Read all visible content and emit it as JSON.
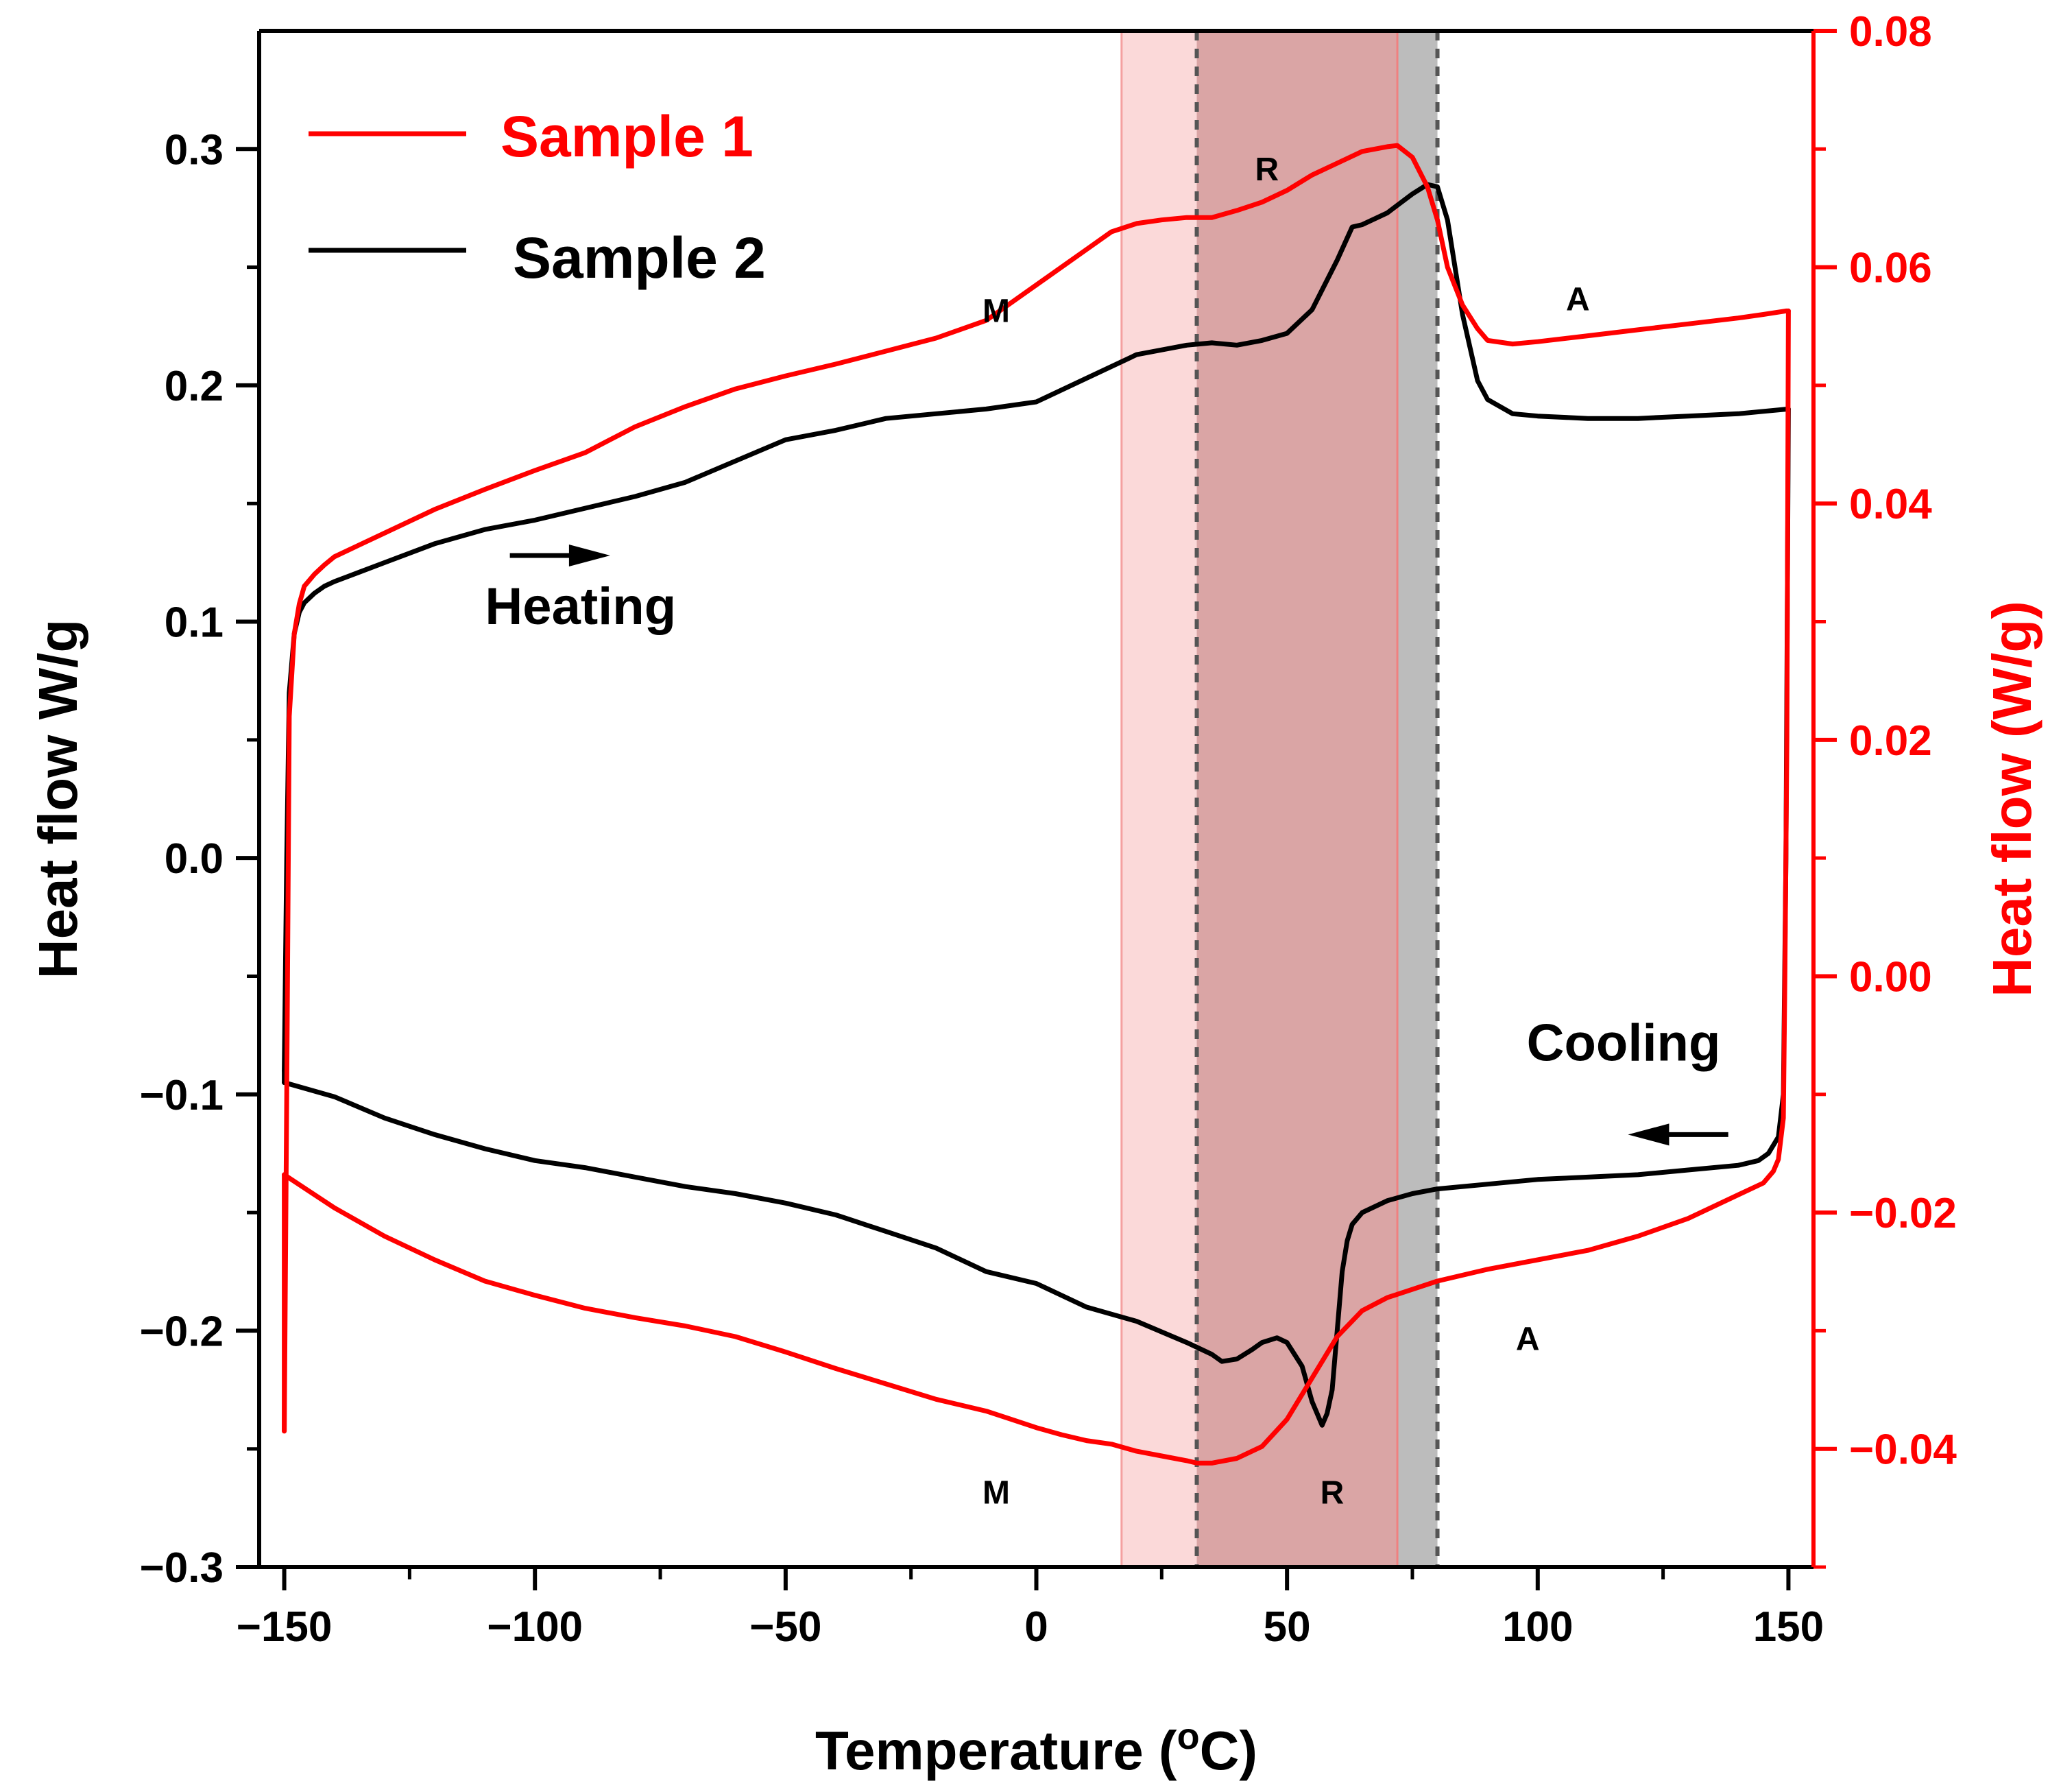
{
  "chart_data": {
    "type": "line",
    "xlabel": "Temperature (°C)",
    "xlabel_main": "Temperature (",
    "xlabel_sup": "o",
    "xlabel_end": "C)",
    "ylabel_left": "Heat flow W/g",
    "ylabel_right": "Heat flow (W/g)",
    "xlim": [
      -155,
      155
    ],
    "ylim_left": [
      -0.3,
      0.35
    ],
    "ylim_right": [
      -0.05,
      0.08
    ],
    "x_ticks": [
      -150,
      -100,
      -50,
      0,
      50,
      100,
      150
    ],
    "x_tick_labels": [
      "−150",
      "−100",
      "−50",
      "0",
      "50",
      "100",
      "150"
    ],
    "y_left_ticks": [
      -0.3,
      -0.2,
      -0.1,
      0.0,
      0.1,
      0.2,
      0.3
    ],
    "y_left_tick_labels": [
      "−0.3",
      "−0.2",
      "−0.1",
      "0.0",
      "0.1",
      "0.2",
      "0.3"
    ],
    "y_right_ticks": [
      -0.04,
      -0.02,
      0.0,
      0.02,
      0.04,
      0.06,
      0.08
    ],
    "y_right_tick_labels": [
      "−0.04",
      "−0.02",
      "0.00",
      "0.02",
      "0.04",
      "0.06",
      "0.08"
    ],
    "colors": {
      "sample1": "#ff0000",
      "sample2": "#000000",
      "right_axis": "#ff0000"
    },
    "legend": [
      {
        "name": "Sample 1",
        "color": "#ff0000"
      },
      {
        "name": "Sample 2",
        "color": "#000000"
      }
    ],
    "shaded_regions": [
      {
        "x0": 17,
        "x1": 72,
        "color": "#f4a0a0",
        "opacity": 0.4
      },
      {
        "x0": 32,
        "x1": 72,
        "color": "#b26666",
        "opacity": 0.45
      },
      {
        "x0": 72,
        "x1": 80,
        "color": "#a0a0a0",
        "opacity": 0.7
      }
    ],
    "vlines": [
      32,
      80
    ],
    "annotations": {
      "heating": {
        "text": "Heating",
        "arrow_from": [
          -105,
          0.128
        ],
        "arrow_to": [
          -85,
          0.128
        ]
      },
      "cooling": {
        "text": "Cooling",
        "arrow_from": [
          138,
          -0.117
        ],
        "arrow_to": [
          118,
          -0.117
        ]
      },
      "phase_labels": [
        {
          "text": "M",
          "x": -8,
          "y": 0.232
        },
        {
          "text": "R",
          "x": 46,
          "y": 0.292
        },
        {
          "text": "A",
          "x": 108,
          "y": 0.237
        },
        {
          "text": "A",
          "x": 98,
          "y": -0.203
        },
        {
          "text": "M",
          "x": -8,
          "y": -0.268
        },
        {
          "text": "R",
          "x": 59,
          "y": -0.268
        }
      ]
    },
    "series": [
      {
        "name": "Sample 2",
        "axis": "left",
        "heating": {
          "x": [
            -150,
            -149.5,
            -149,
            -148,
            -147,
            -146,
            -144,
            -142,
            -140,
            -135,
            -130,
            -120,
            -110,
            -100,
            -90,
            -80,
            -70,
            -60,
            -50,
            -40,
            -30,
            -20,
            -10,
            0,
            10,
            20,
            30,
            35,
            40,
            45,
            50,
            55,
            60,
            63,
            65,
            70,
            75,
            78,
            80,
            82,
            85,
            88,
            90,
            95,
            100,
            110,
            120,
            130,
            140,
            145,
            150
          ],
          "y": [
            -0.09,
            0.0,
            0.07,
            0.095,
            0.104,
            0.108,
            0.112,
            0.115,
            0.117,
            0.121,
            0.125,
            0.133,
            0.139,
            0.143,
            0.148,
            0.153,
            0.159,
            0.168,
            0.177,
            0.181,
            0.186,
            0.188,
            0.19,
            0.193,
            0.203,
            0.213,
            0.217,
            0.218,
            0.217,
            0.219,
            0.222,
            0.232,
            0.253,
            0.267,
            0.268,
            0.273,
            0.281,
            0.285,
            0.284,
            0.27,
            0.23,
            0.202,
            0.194,
            0.188,
            0.187,
            0.186,
            0.186,
            0.187,
            0.188,
            0.189,
            0.19
          ]
        },
        "cooling": {
          "x": [
            150,
            149.5,
            149,
            148,
            146,
            144,
            140,
            130,
            120,
            110,
            100,
            90,
            80,
            75,
            70,
            65,
            63,
            62,
            61,
            60,
            59,
            58,
            57,
            55,
            53,
            50,
            48,
            45,
            43,
            40,
            37,
            35,
            30,
            20,
            10,
            0,
            -10,
            -20,
            -30,
            -40,
            -50,
            -60,
            -70,
            -80,
            -90,
            -100,
            -110,
            -120,
            -130,
            -140,
            -150
          ],
          "y": [
            0.19,
            0.0,
            -0.1,
            -0.118,
            -0.125,
            -0.128,
            -0.13,
            -0.132,
            -0.134,
            -0.135,
            -0.136,
            -0.138,
            -0.14,
            -0.142,
            -0.145,
            -0.15,
            -0.155,
            -0.162,
            -0.175,
            -0.2,
            -0.225,
            -0.235,
            -0.24,
            -0.23,
            -0.215,
            -0.205,
            -0.203,
            -0.205,
            -0.208,
            -0.212,
            -0.213,
            -0.21,
            -0.205,
            -0.196,
            -0.19,
            -0.18,
            -0.175,
            -0.165,
            -0.158,
            -0.151,
            -0.146,
            -0.142,
            -0.139,
            -0.135,
            -0.131,
            -0.128,
            -0.123,
            -0.117,
            -0.11,
            -0.101,
            -0.095
          ]
        },
        "closure": {
          "x": [
            -150,
            -150
          ],
          "y": [
            -0.095,
            -0.09
          ]
        }
      },
      {
        "name": "Sample 1",
        "axis": "right",
        "heating": {
          "x": [
            -150,
            -149.5,
            -149,
            -148,
            -147,
            -146,
            -144,
            -142,
            -140,
            -135,
            -130,
            -120,
            -110,
            -100,
            -90,
            -80,
            -70,
            -60,
            -50,
            -40,
            -30,
            -20,
            -10,
            0,
            10,
            15,
            20,
            25,
            30,
            35,
            40,
            45,
            50,
            55,
            60,
            65,
            70,
            72,
            75,
            78,
            80,
            82,
            85,
            88,
            90,
            95,
            100,
            110,
            120,
            130,
            140,
            145,
            149.5,
            150
          ],
          "y": [
            -0.0385,
            -0.01,
            0.022,
            0.029,
            0.0315,
            0.033,
            0.034,
            0.0348,
            0.0355,
            0.0365,
            0.0375,
            0.0395,
            0.0412,
            0.0428,
            0.0443,
            0.0465,
            0.0482,
            0.0497,
            0.0508,
            0.0518,
            0.0529,
            0.054,
            0.0555,
            0.0585,
            0.0615,
            0.063,
            0.0637,
            0.064,
            0.0642,
            0.0642,
            0.0648,
            0.0655,
            0.0665,
            0.0678,
            0.0688,
            0.0698,
            0.0702,
            0.0703,
            0.0693,
            0.0668,
            0.064,
            0.06,
            0.0568,
            0.0548,
            0.0538,
            0.0535,
            0.0537,
            0.0542,
            0.0547,
            0.0552,
            0.0557,
            0.056,
            0.0563,
            0.0563
          ]
        },
        "cooling": {
          "x": [
            150,
            149.7,
            149.3,
            149,
            148,
            147,
            145,
            140,
            130,
            120,
            110,
            100,
            90,
            80,
            75,
            70,
            65,
            60,
            55,
            50,
            45,
            40,
            35,
            32,
            30,
            25,
            20,
            15,
            10,
            5,
            0,
            -5,
            -10,
            -20,
            -30,
            -40,
            -50,
            -60,
            -70,
            -80,
            -90,
            -100,
            -110,
            -120,
            -130,
            -140,
            -145,
            -150
          ],
          "y": [
            0.0563,
            0.02,
            0.0,
            -0.012,
            -0.0155,
            -0.0165,
            -0.0175,
            -0.0185,
            -0.0205,
            -0.022,
            -0.0232,
            -0.024,
            -0.0248,
            -0.0258,
            -0.0265,
            -0.0272,
            -0.0283,
            -0.0305,
            -0.034,
            -0.0375,
            -0.0398,
            -0.0408,
            -0.0412,
            -0.0412,
            -0.041,
            -0.0406,
            -0.0402,
            -0.0396,
            -0.0393,
            -0.0388,
            -0.0382,
            -0.0375,
            -0.0368,
            -0.0358,
            -0.0345,
            -0.0332,
            -0.0318,
            -0.0305,
            -0.0296,
            -0.0289,
            -0.0281,
            -0.027,
            -0.0258,
            -0.024,
            -0.022,
            -0.0196,
            -0.0182,
            -0.0168
          ]
        },
        "closure": {
          "x": [
            -150,
            -150
          ],
          "y": [
            -0.0168,
            -0.0385
          ]
        }
      }
    ]
  }
}
